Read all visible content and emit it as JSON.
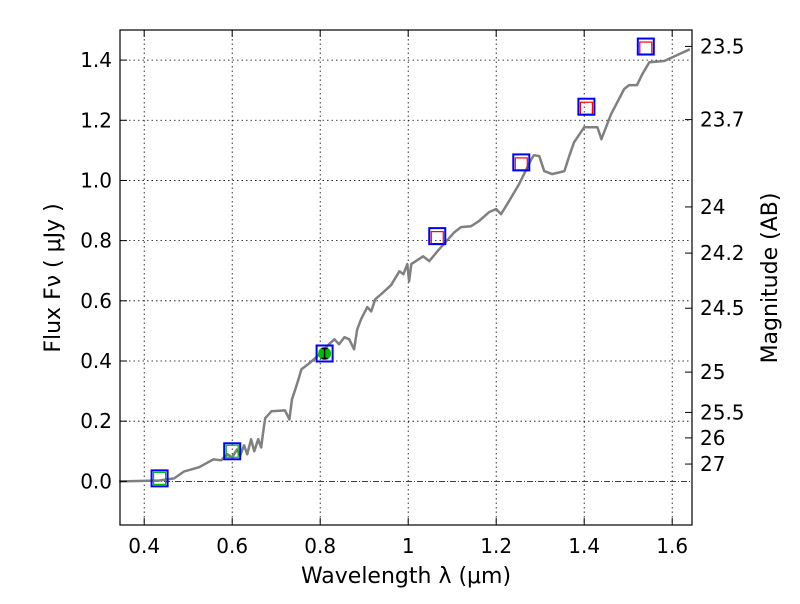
{
  "chart_data": {
    "type": "line",
    "xlabel": "Wavelength  λ (μm)",
    "ylabel": "Flux  Fν  ( μJy )",
    "ylabel_right": "Magnitude (AB)",
    "xlim": [
      0.345,
      1.645
    ],
    "ylim": [
      -0.145,
      1.5
    ],
    "grid": true,
    "x_ticks": [
      0.4,
      0.6,
      0.8,
      1,
      1.2,
      1.4,
      1.6
    ],
    "x_tick_labels": [
      "0.4",
      "0.6",
      "0.8",
      "1",
      "1.2",
      "1.4",
      "1.6"
    ],
    "y_ticks": [
      0.0,
      0.2,
      0.4,
      0.6,
      0.8,
      1.0,
      1.2,
      1.4
    ],
    "y_tick_labels": [
      "0.0",
      "0.2",
      "0.4",
      "0.6",
      "0.8",
      "1.0",
      "1.2",
      "1.4"
    ],
    "right_ticks_mag": [
      23.5,
      23.7,
      24,
      24.2,
      24.5,
      25,
      25.5,
      26,
      27
    ],
    "right_tick_labels": [
      "23.5",
      "23.7",
      "24",
      "24.2",
      "24.5",
      "25",
      "25.5",
      "26",
      "27"
    ],
    "ab_zeropoint": 23.9,
    "colors": {
      "spectrum": "#808080",
      "model": "#0000ff",
      "obs_upper": "#00bb00",
      "obs_detect": "#00bb00",
      "obs_other": "#ff0000"
    },
    "spectrum": {
      "x": [
        0.343,
        0.434,
        0.468,
        0.491,
        0.525,
        0.557,
        0.575,
        0.589,
        0.6,
        0.611,
        0.618,
        0.627,
        0.634,
        0.643,
        0.65,
        0.659,
        0.666,
        0.67,
        0.675,
        0.689,
        0.72,
        0.73,
        0.736,
        0.745,
        0.752,
        0.757,
        0.775,
        0.798,
        0.82,
        0.832,
        0.843,
        0.855,
        0.866,
        0.877,
        0.884,
        0.893,
        0.907,
        0.916,
        0.925,
        0.943,
        0.961,
        0.98,
        0.989,
        0.998,
        1.002,
        1.007,
        1.034,
        1.048,
        1.07,
        1.105,
        1.12,
        1.143,
        1.161,
        1.184,
        1.2,
        1.211,
        1.225,
        1.252,
        1.28,
        1.286,
        1.298,
        1.309,
        1.327,
        1.355,
        1.366,
        1.377,
        1.4,
        1.43,
        1.439,
        1.461,
        1.491,
        1.502,
        1.52,
        1.532,
        1.548,
        1.582,
        1.616,
        1.64
      ],
      "y": [
        0.0,
        0.003,
        0.01,
        0.033,
        0.047,
        0.073,
        0.07,
        0.09,
        0.08,
        0.106,
        0.086,
        0.12,
        0.09,
        0.14,
        0.1,
        0.14,
        0.113,
        0.16,
        0.21,
        0.233,
        0.236,
        0.206,
        0.273,
        0.313,
        0.346,
        0.372,
        0.392,
        0.422,
        0.456,
        0.472,
        0.456,
        0.479,
        0.472,
        0.439,
        0.505,
        0.539,
        0.579,
        0.565,
        0.605,
        0.628,
        0.652,
        0.698,
        0.688,
        0.722,
        0.665,
        0.722,
        0.748,
        0.732,
        0.771,
        0.828,
        0.845,
        0.848,
        0.865,
        0.895,
        0.905,
        0.888,
        0.921,
        0.988,
        1.071,
        1.084,
        1.081,
        1.031,
        1.021,
        1.031,
        1.081,
        1.127,
        1.177,
        1.177,
        1.137,
        1.22,
        1.304,
        1.317,
        1.317,
        1.353,
        1.393,
        1.397,
        1.42,
        1.436
      ]
    },
    "photometry": [
      {
        "x": 0.435,
        "model": 0.01,
        "obs": 0.01,
        "kind": "green-square"
      },
      {
        "x": 0.6,
        "model": 0.1,
        "obs": 0.1,
        "kind": "green-square"
      },
      {
        "x": 0.81,
        "model": 0.425,
        "obs": 0.425,
        "kind": "green-circle"
      },
      {
        "x": 1.066,
        "model": 0.815,
        "obs": 0.81,
        "kind": "red-square"
      },
      {
        "x": 1.257,
        "model": 1.06,
        "obs": 1.055,
        "kind": "red-square"
      },
      {
        "x": 1.405,
        "model": 1.245,
        "obs": 1.24,
        "kind": "red-square"
      },
      {
        "x": 1.54,
        "model": 1.445,
        "obs": 1.44,
        "kind": "red-square"
      }
    ]
  }
}
